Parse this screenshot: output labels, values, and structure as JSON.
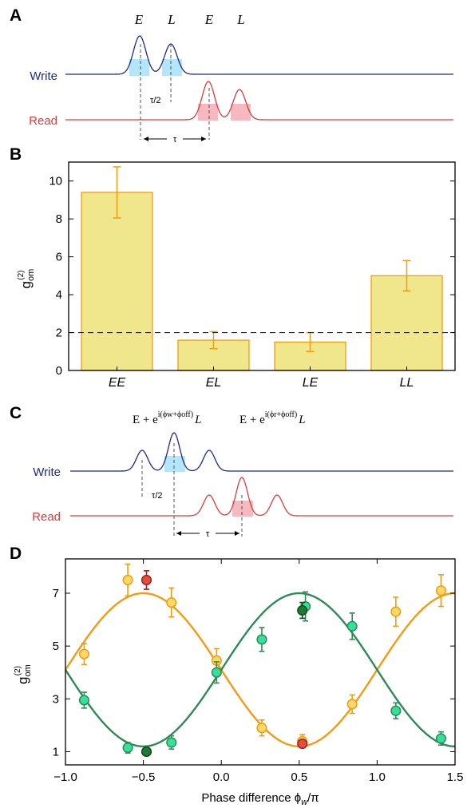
{
  "panels": {
    "A": {
      "letter": "A",
      "pulse_labels": [
        "E",
        "L",
        "E",
        "L"
      ],
      "write_label": "Write",
      "read_label": "Read",
      "half_delay": "τ/2",
      "delay": "τ"
    },
    "B": {
      "letter": "B"
    },
    "C": {
      "letter": "C",
      "formula_write": {
        "base": "E + e",
        "exp": "i(ϕw+ϕoff)",
        "tail": "L"
      },
      "formula_read": {
        "base": "E + e",
        "exp": "i(ϕr+ϕoff)",
        "tail": "L"
      },
      "write_label": "Write",
      "read_label": "Read",
      "half_delay": "τ/2",
      "delay": "τ"
    },
    "D": {
      "letter": "D"
    }
  },
  "colors": {
    "write": "#1f2a8a",
    "read": "#e03a3a",
    "write_fill": "#b3e5fb",
    "read_fill": "#f7b9c0",
    "bar_fill": "#f0e68c",
    "bar_edge": "#f39c12",
    "orange": "#f39c12",
    "green": "#2e8b57",
    "yellow_marker": "#ffd966",
    "green_marker": "#35e09a",
    "red_marker": "#e74c3c",
    "dark_green_marker": "#1e7a36"
  },
  "chart_data": [
    {
      "type": "bar",
      "panel": "B",
      "categories": [
        "EE",
        "EL",
        "LE",
        "LL"
      ],
      "values": [
        9.4,
        1.6,
        1.5,
        5.0
      ],
      "errors": [
        1.35,
        0.45,
        0.5,
        0.8
      ],
      "ylabel": "g_om^(2)",
      "ylabel_main": "g",
      "ylabel_sup": "(2)",
      "ylabel_sub": "om",
      "ylim": [
        0,
        11
      ],
      "yticks": [
        0,
        2,
        4,
        6,
        8,
        10
      ],
      "reference_line": 2,
      "grid": false
    },
    {
      "type": "scatter",
      "panel": "D",
      "xlabel": "Phase difference ϕw/π",
      "xlabel_main": "Phase difference ϕ",
      "xlabel_sub": "w",
      "xlabel_tail": "/π",
      "ylabel_main": "g",
      "ylabel_sup": "(2)",
      "ylabel_sub": "om",
      "xlim": [
        -1.0,
        1.5
      ],
      "ylim": [
        0.5,
        8.3
      ],
      "xticks": [
        "-1.0",
        "-0.5",
        "0.0",
        "0.5",
        "1.0",
        "1.5"
      ],
      "yticks": [
        "1",
        "3",
        "5",
        "7"
      ],
      "grid": false,
      "series": [
        {
          "marker": "yellow",
          "x": [
            -0.88,
            -0.6,
            -0.32,
            -0.03,
            0.26,
            0.52,
            0.84,
            1.12,
            1.41
          ],
          "y": [
            4.7,
            7.5,
            6.65,
            4.45,
            1.9,
            1.4,
            2.8,
            6.3,
            7.1
          ],
          "err": [
            0.4,
            0.6,
            0.55,
            0.45,
            0.3,
            0.25,
            0.35,
            0.55,
            0.6
          ]
        },
        {
          "marker": "green",
          "x": [
            -0.88,
            -0.6,
            -0.32,
            -0.03,
            0.26,
            0.54,
            0.84,
            1.12,
            1.41
          ],
          "y": [
            2.95,
            1.15,
            1.35,
            4.0,
            5.25,
            6.5,
            5.75,
            2.55,
            1.5
          ],
          "err": [
            0.3,
            0.2,
            0.25,
            0.4,
            0.45,
            0.55,
            0.5,
            0.3,
            0.25
          ]
        },
        {
          "marker": "red",
          "x": [
            -0.48,
            0.52
          ],
          "y": [
            7.5,
            1.3
          ],
          "err": [
            0.35,
            0.15
          ]
        },
        {
          "marker": "dark-green",
          "x": [
            -0.48,
            0.52
          ],
          "y": [
            1.0,
            6.35
          ],
          "err": [
            0.0,
            0.3
          ]
        }
      ],
      "fits": [
        {
          "color": "orange",
          "offset": 4.1,
          "amplitude": 2.9,
          "phase": -0.5
        },
        {
          "color": "green",
          "offset": 4.1,
          "amplitude": 2.9,
          "phase": 0.5
        }
      ]
    }
  ]
}
